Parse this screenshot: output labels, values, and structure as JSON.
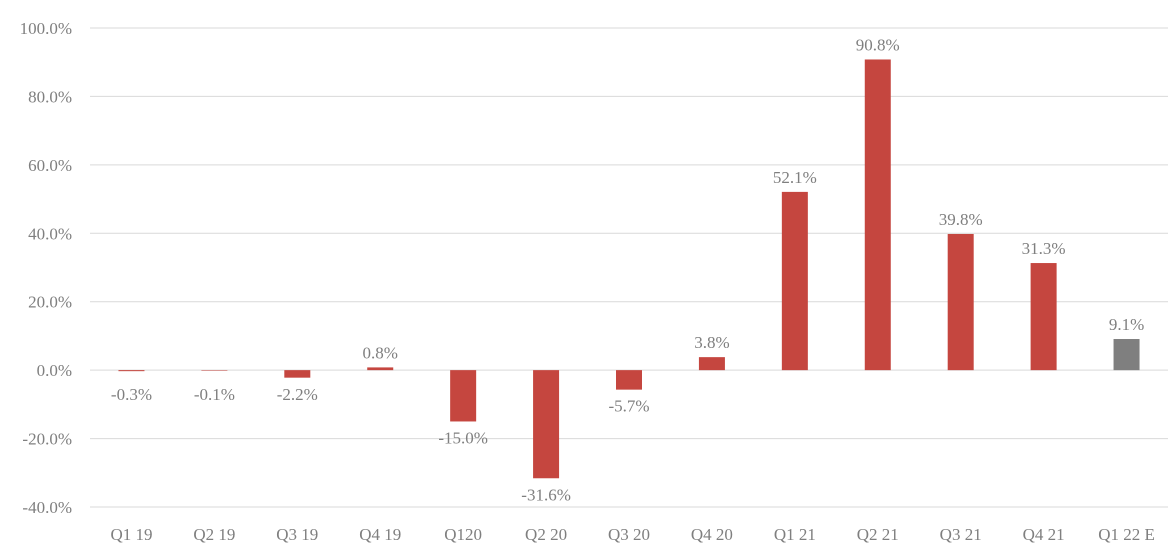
{
  "chart_data": {
    "type": "bar",
    "title": "",
    "xlabel": "",
    "ylabel": "",
    "categories": [
      "Q1 19",
      "Q2 19",
      "Q3 19",
      "Q4 19",
      "Q120",
      "Q2 20",
      "Q3 20",
      "Q4 20",
      "Q1 21",
      "Q2 21",
      "Q3 21",
      "Q4 21",
      "Q1 22 E"
    ],
    "values": [
      -0.3,
      -0.1,
      -2.2,
      0.8,
      -15.0,
      -31.6,
      -5.7,
      3.8,
      52.1,
      90.8,
      39.8,
      31.3,
      9.1
    ],
    "data_labels": [
      "-0.3%",
      "-0.1%",
      "-2.2%",
      "0.8%",
      "-15.0%",
      "-31.6%",
      "-5.7%",
      "3.8%",
      "52.1%",
      "90.8%",
      "39.8%",
      "31.3%",
      "9.1%"
    ],
    "bar_colors": [
      "#c5463f",
      "#c5463f",
      "#c5463f",
      "#c5463f",
      "#c5463f",
      "#c5463f",
      "#c5463f",
      "#c5463f",
      "#c5463f",
      "#c5463f",
      "#c5463f",
      "#c5463f",
      "#7f7f7f"
    ],
    "ylim": [
      -40,
      100
    ],
    "yticks": [
      100,
      80,
      60,
      40,
      20,
      0,
      -20,
      -40
    ],
    "ytick_labels": [
      "100.0%",
      "80.0%",
      "60.0%",
      "40.0%",
      "20.0%",
      "0.0%",
      "-20.0%",
      "-40.0%"
    ],
    "grid": true,
    "legend": "none",
    "colors": {
      "actual": "#c5463f",
      "estimate": "#7f7f7f",
      "grid": "#d9d9d9",
      "text": "#7f7f7f"
    }
  }
}
